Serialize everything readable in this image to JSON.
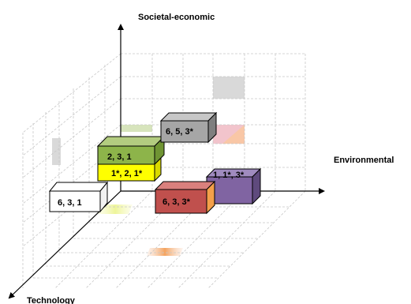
{
  "axes": {
    "vertical": "Societal-economic",
    "horizontal": "Environmental",
    "depth": "Technology"
  },
  "boxes": [
    {
      "id": "white",
      "label": "6, 3, 1",
      "color": "#ffffff"
    },
    {
      "id": "yellow",
      "label": "1*, 2, 1*",
      "color": "#ffff00"
    },
    {
      "id": "green",
      "label": "2, 3, 1",
      "color": "#8db44a"
    },
    {
      "id": "gray",
      "label": "6, 5, 3*",
      "color": "#a6a6a6"
    },
    {
      "id": "purple",
      "label": "1, 1*, 3*",
      "color": "#8064a2"
    },
    {
      "id": "red",
      "label": "6, 3, 3*",
      "color": "#c0504d"
    }
  ],
  "colors": {
    "axis": "#000000",
    "grid": "#c8c8c8",
    "shadow_gray": "#d9d9d9",
    "shadow_green": "#d7e4bc",
    "shadow_orange": "#f9c7a6",
    "shadow_pink": "#f2c4cc",
    "shadow_yellow": "#f3f7b0"
  }
}
